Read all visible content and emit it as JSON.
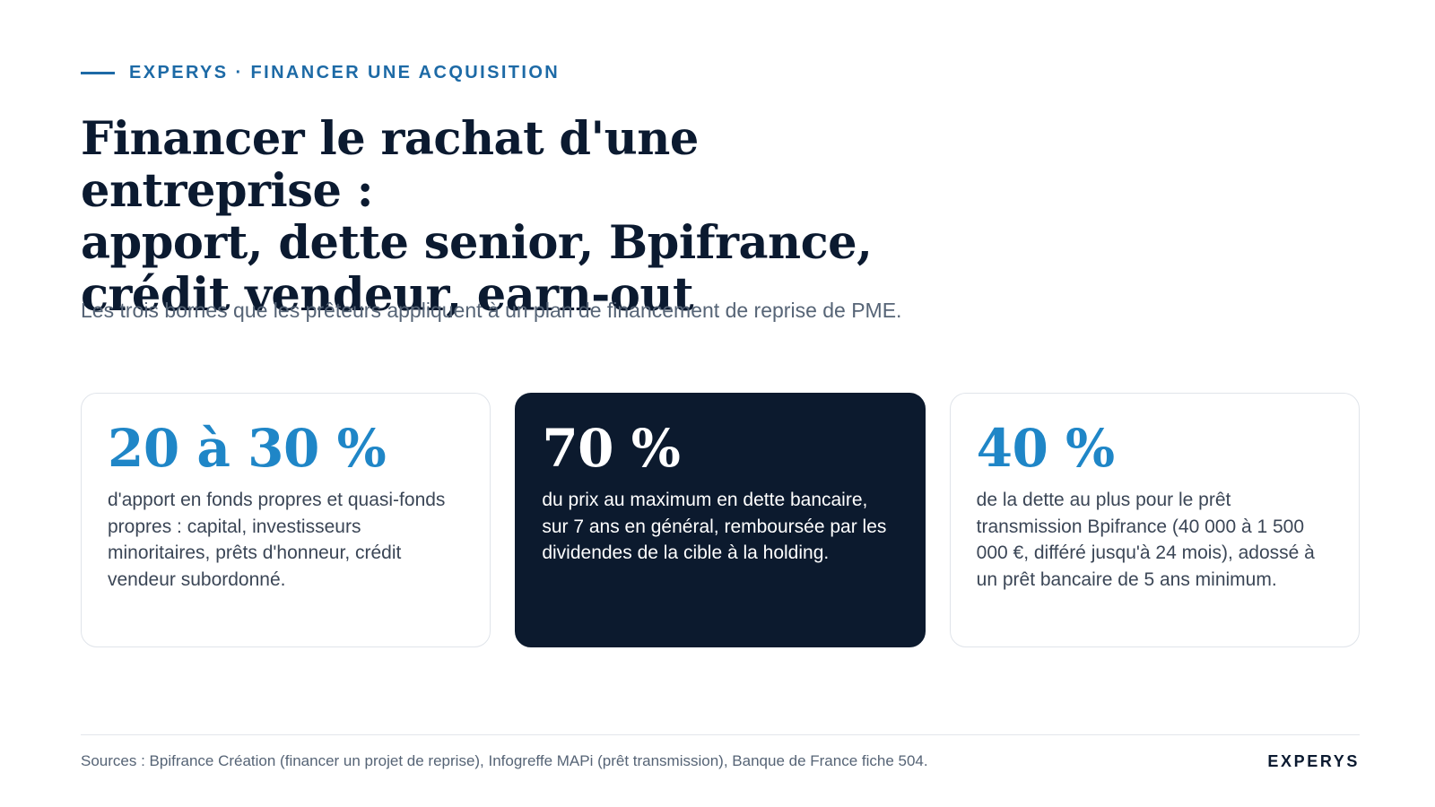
{
  "header": {
    "kicker": "EXPERYS · FINANCER UNE ACQUISITION",
    "title_lines": [
      "Financer le rachat d'une entreprise :",
      "apport, dette senior, Bpifrance,",
      "crédit vendeur, earn-out"
    ],
    "subtitle": "Les trois bornes que les prêteurs appliquent à un plan de financement de reprise de PME."
  },
  "cards": [
    {
      "value": "20 à 30 %",
      "text": "d'apport en fonds propres et quasi-fonds propres : capital, investisseurs minoritaires, prêts d'honneur, crédit vendeur subordonné."
    },
    {
      "value": "70 %",
      "text": "du prix au maximum en dette bancaire, sur 7 ans en général, remboursée par les dividendes de la cible à la holding."
    },
    {
      "value": "40 %",
      "text": "de la dette au plus pour le prêt transmission Bpifrance (40 000 à 1 500 000 €, différé jusqu'à 24 mois), adossé à un prêt bancaire de 5 ans minimum."
    }
  ],
  "footer": {
    "sources": "Sources : Bpifrance Création (financer un projet de reprise), Infogreffe MAPi (prêt transmission), Banque de France fiche 504.",
    "brand": "EXPERYS"
  },
  "colors": {
    "accent": "#1d6aa6",
    "value_blue": "#1f86c7",
    "dark_card": "#0c1a2e",
    "title": "#0b1a30",
    "muted": "#566476"
  }
}
